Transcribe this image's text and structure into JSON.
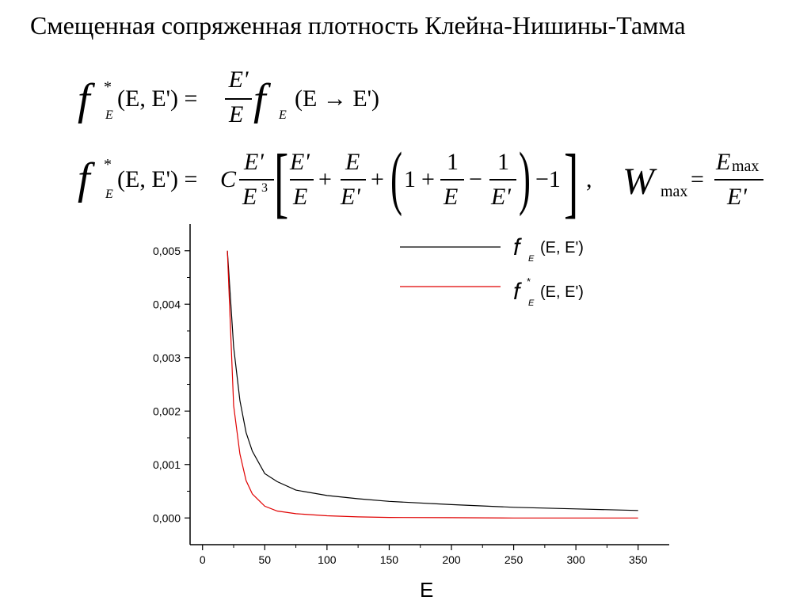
{
  "page": {
    "title": "Смещенная сопряженная плотность Клейна-Нишины-Тамма"
  },
  "formulas": {
    "f": "f",
    "star": "*",
    "sub_E": "E",
    "args": "(E, E') =",
    "args_noeq": "(E, E')",
    "E_prime": "E'",
    "E": "E",
    "arrow_arg": "(E → E')",
    "C": "C",
    "E_cubed_base": "E",
    "E_cubed_exp": "3",
    "plus": "+",
    "minus": "−",
    "one": "1",
    "open_paren": "(",
    "close_paren": ")",
    "minus_one": "−1",
    "comma": ",",
    "W": "W",
    "max": "max",
    "eq": "=",
    "E_max_base": "E",
    "E_max_sub": "max"
  },
  "chart_data": {
    "type": "line",
    "xlabel": "E",
    "ylabel": "",
    "xlim": [
      -10,
      375
    ],
    "ylim": [
      -0.0005,
      0.0055
    ],
    "xticks": [
      "0",
      "50",
      "100",
      "150",
      "200",
      "250",
      "300",
      "350"
    ],
    "yticks": [
      "0,000",
      "0,001",
      "0,002",
      "0,003",
      "0,004",
      "0,005"
    ],
    "legend": {
      "placement": "top-right",
      "entries": [
        "f_E(E,E')",
        "f*_E(E,E')"
      ]
    },
    "series": [
      {
        "name": "f_E(E,E')",
        "color": "#000000",
        "x": [
          20,
          25,
          30,
          35,
          40,
          50,
          60,
          75,
          100,
          125,
          150,
          200,
          250,
          300,
          350
        ],
        "y": [
          0.005,
          0.0032,
          0.0022,
          0.0016,
          0.00125,
          0.00083,
          0.00068,
          0.00052,
          0.00042,
          0.00036,
          0.00031,
          0.00025,
          0.0002,
          0.00017,
          0.00014
        ]
      },
      {
        "name": "f*_E(E,E')",
        "color": "#e00000",
        "x": [
          20,
          25,
          30,
          35,
          40,
          50,
          60,
          75,
          100,
          125,
          150,
          200,
          250,
          300,
          350
        ],
        "y": [
          0.005,
          0.0021,
          0.0012,
          0.0007,
          0.00045,
          0.00022,
          0.00013,
          8e-05,
          4e-05,
          2e-05,
          1e-05,
          5e-06,
          0.0,
          0.0,
          0.0
        ]
      }
    ]
  }
}
